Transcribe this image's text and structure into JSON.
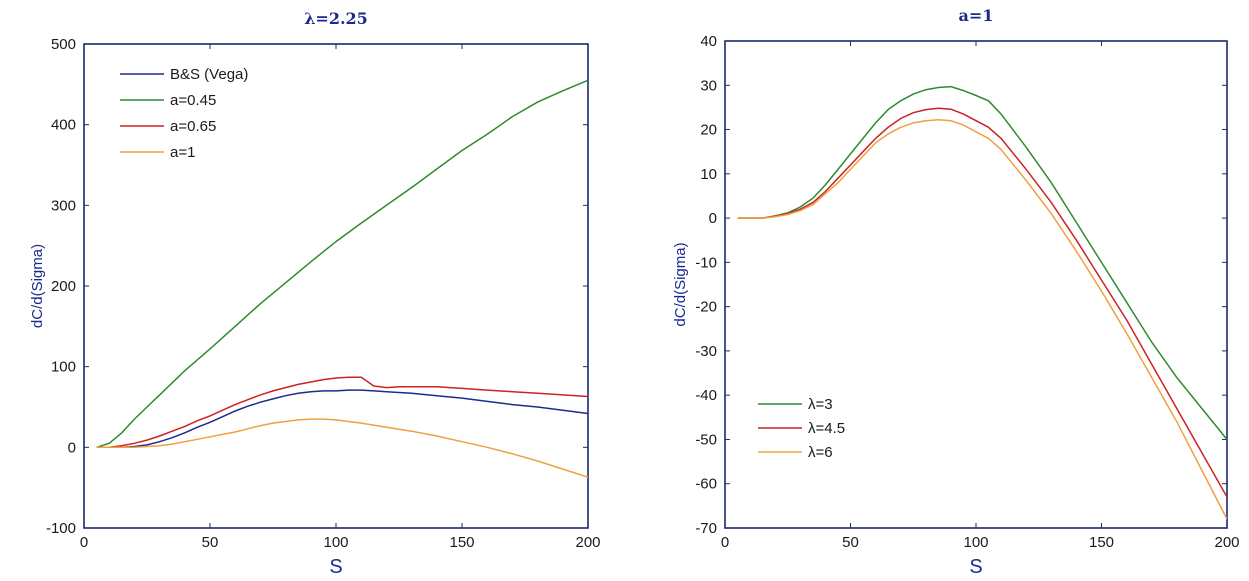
{
  "chart_data": [
    {
      "type": "line",
      "title": "λ=2.25",
      "xlabel": "S",
      "ylabel": "dC/d(Sigma)",
      "xlim": [
        0,
        200
      ],
      "ylim": [
        -100,
        500
      ],
      "xticks": [
        0,
        50,
        100,
        150,
        200
      ],
      "yticks": [
        -100,
        0,
        100,
        200,
        300,
        400,
        500
      ],
      "grid": false,
      "legend_position": "top-left",
      "series": [
        {
          "name": "B&S (Vega)",
          "color": "#1f2a8f",
          "x": [
            5,
            10,
            15,
            20,
            25,
            30,
            35,
            40,
            45,
            50,
            55,
            60,
            65,
            70,
            75,
            80,
            85,
            90,
            95,
            100,
            105,
            110,
            115,
            120,
            125,
            130,
            140,
            150,
            160,
            170,
            180,
            190,
            200
          ],
          "y": [
            0,
            0,
            0,
            1,
            3,
            7,
            12,
            18,
            25,
            31,
            38,
            45,
            51,
            56,
            60,
            64,
            67,
            69,
            70,
            70,
            71,
            71,
            70,
            69,
            68,
            67,
            64,
            61,
            57,
            53,
            50,
            46,
            42
          ]
        },
        {
          "name": "a=0.45",
          "color": "#2e8b2e",
          "x": [
            5,
            10,
            15,
            20,
            25,
            30,
            40,
            50,
            60,
            70,
            80,
            90,
            100,
            110,
            120,
            130,
            140,
            150,
            160,
            170,
            180,
            190,
            200
          ],
          "y": [
            0,
            5,
            18,
            35,
            50,
            65,
            95,
            122,
            150,
            178,
            204,
            230,
            255,
            278,
            300,
            322,
            345,
            368,
            388,
            410,
            428,
            442,
            455
          ]
        },
        {
          "name": "a=0.65",
          "color": "#cc2222",
          "x": [
            5,
            10,
            15,
            20,
            25,
            30,
            35,
            40,
            45,
            50,
            55,
            60,
            65,
            70,
            75,
            80,
            85,
            90,
            95,
            100,
            105,
            110,
            115,
            120,
            125,
            130,
            140,
            150,
            160,
            170,
            180,
            190,
            200
          ],
          "y": [
            0,
            0,
            2,
            5,
            9,
            14,
            20,
            26,
            33,
            39,
            46,
            53,
            59,
            65,
            70,
            74,
            78,
            81,
            84,
            86,
            87,
            87,
            76,
            74,
            75,
            75,
            75,
            73,
            71,
            69,
            67,
            65,
            63
          ]
        },
        {
          "name": "a=1",
          "color": "#f0a040",
          "x": [
            5,
            10,
            15,
            20,
            25,
            30,
            35,
            40,
            45,
            50,
            55,
            60,
            65,
            70,
            75,
            80,
            85,
            90,
            95,
            100,
            110,
            120,
            130,
            140,
            150,
            160,
            170,
            180,
            190,
            200
          ],
          "y": [
            0,
            0,
            0,
            0,
            1,
            2,
            4,
            7,
            10,
            13,
            16,
            19,
            23,
            27,
            30,
            32,
            34,
            35,
            35,
            34,
            30,
            25,
            20,
            14,
            7,
            0,
            -8,
            -17,
            -27,
            -37
          ]
        }
      ]
    },
    {
      "type": "line",
      "title": "a=1",
      "xlabel": "S",
      "ylabel": "dC/d(Sigma)",
      "xlim": [
        0,
        200
      ],
      "ylim": [
        -70,
        40
      ],
      "xticks": [
        0,
        50,
        100,
        150,
        200
      ],
      "yticks": [
        -70,
        -60,
        -50,
        -40,
        -30,
        -20,
        -10,
        0,
        10,
        20,
        30,
        40
      ],
      "grid": false,
      "legend_position": "bottom-left",
      "series": [
        {
          "name": "λ=3",
          "color": "#2e8b2e",
          "x": [
            5,
            10,
            15,
            20,
            25,
            30,
            35,
            40,
            45,
            50,
            55,
            60,
            65,
            70,
            75,
            80,
            85,
            90,
            95,
            100,
            105,
            110,
            120,
            130,
            140,
            150,
            160,
            170,
            180,
            190,
            200
          ],
          "y": [
            0,
            0,
            0,
            0.5,
            1.2,
            2.5,
            4.5,
            7.5,
            11,
            14.5,
            18,
            21.5,
            24.5,
            26.5,
            28,
            29,
            29.5,
            29.7,
            28.8,
            27.7,
            26.5,
            23.5,
            16,
            8,
            -1,
            -10,
            -19,
            -28,
            -36,
            -43,
            -50
          ]
        },
        {
          "name": "λ=4.5",
          "color": "#cc2222",
          "x": [
            5,
            10,
            15,
            20,
            25,
            30,
            35,
            40,
            45,
            50,
            55,
            60,
            65,
            70,
            75,
            80,
            85,
            90,
            95,
            100,
            105,
            110,
            120,
            130,
            140,
            150,
            160,
            170,
            180,
            190,
            200
          ],
          "y": [
            0,
            0,
            0,
            0.4,
            1,
            2,
            3.5,
            6,
            9,
            12,
            15,
            18,
            20.5,
            22.5,
            23.8,
            24.5,
            24.8,
            24.6,
            23.5,
            22,
            20.5,
            18,
            11,
            3.5,
            -5,
            -14,
            -23,
            -33,
            -43,
            -53,
            -63
          ]
        },
        {
          "name": "λ=6",
          "color": "#f0a040",
          "x": [
            5,
            10,
            15,
            20,
            25,
            30,
            35,
            40,
            45,
            50,
            55,
            60,
            65,
            70,
            75,
            80,
            85,
            90,
            95,
            100,
            105,
            110,
            120,
            130,
            140,
            150,
            160,
            170,
            180,
            190,
            200
          ],
          "y": [
            0,
            0,
            0,
            0.3,
            0.8,
            1.7,
            3,
            5.5,
            8,
            11,
            14,
            17,
            19,
            20.5,
            21.5,
            22,
            22.2,
            22,
            21,
            19.5,
            18,
            15.5,
            8.5,
            1,
            -7.5,
            -16.5,
            -26,
            -36,
            -46,
            -57,
            -68
          ]
        }
      ]
    }
  ]
}
